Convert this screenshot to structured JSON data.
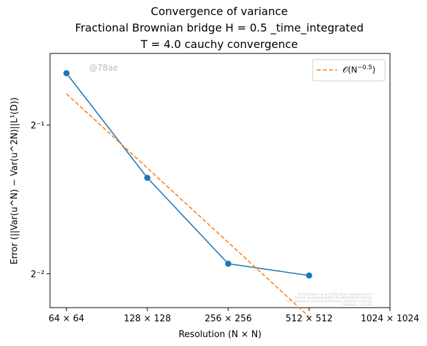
{
  "chart_data": {
    "type": "line",
    "title_lines": [
      "Convergence of variance",
      "Fractional Brownian bridge H = 0.5 _time_integrated",
      "T = 4.0 cauchy convergence"
    ],
    "xlabel": "Resolution (N × N)",
    "ylabel": "Error (||Var(u^N) − Var(u^2N)||L¹(D))",
    "x_scale": "log2",
    "y_scale": "log2",
    "x_ticks": [
      64,
      128,
      256,
      512,
      1024
    ],
    "x_tick_labels": [
      "64 × 64",
      "128 × 128",
      "256 × 256",
      "512 × 512",
      "1024 × 1024"
    ],
    "y_ticks": [
      0.25,
      0.5
    ],
    "y_tick_labels": [
      "2⁻²",
      "2⁻¹"
    ],
    "xlim": [
      55.6,
      1024
    ],
    "ylim": [
      0.2135,
      0.6985
    ],
    "series": [
      {
        "name": "",
        "style": "solid-marker",
        "color": "#1f77b4",
        "x": [
          64,
          128,
          256,
          512
        ],
        "y": [
          0.637,
          0.391,
          0.262,
          0.248
        ]
      },
      {
        "name": "𝒪(N^−0.5)",
        "style": "dashed",
        "color": "#ff7f0e",
        "x": [
          64,
          512
        ],
        "y": [
          0.5788,
          0.2046
        ]
      }
    ],
    "legend": {
      "placement": "top-right",
      "label_prefix": "𝒪(N",
      "label_exp": "−0.5",
      "label_suffix": ")"
    },
    "watermark": "@78ae",
    "fine_print": [
      "By Kjetil Olsen Lye @ 0.0000 (Kjetil.o.lye@gmail.com)",
      "Commit: 8aaa9b3bf5ae6607c93ad80ab6063973447332",
      "Repo: git@github.com:kjetil-lye/fractional_brownian_motion.git",
      "Hostname: r1-n4-007"
    ]
  }
}
